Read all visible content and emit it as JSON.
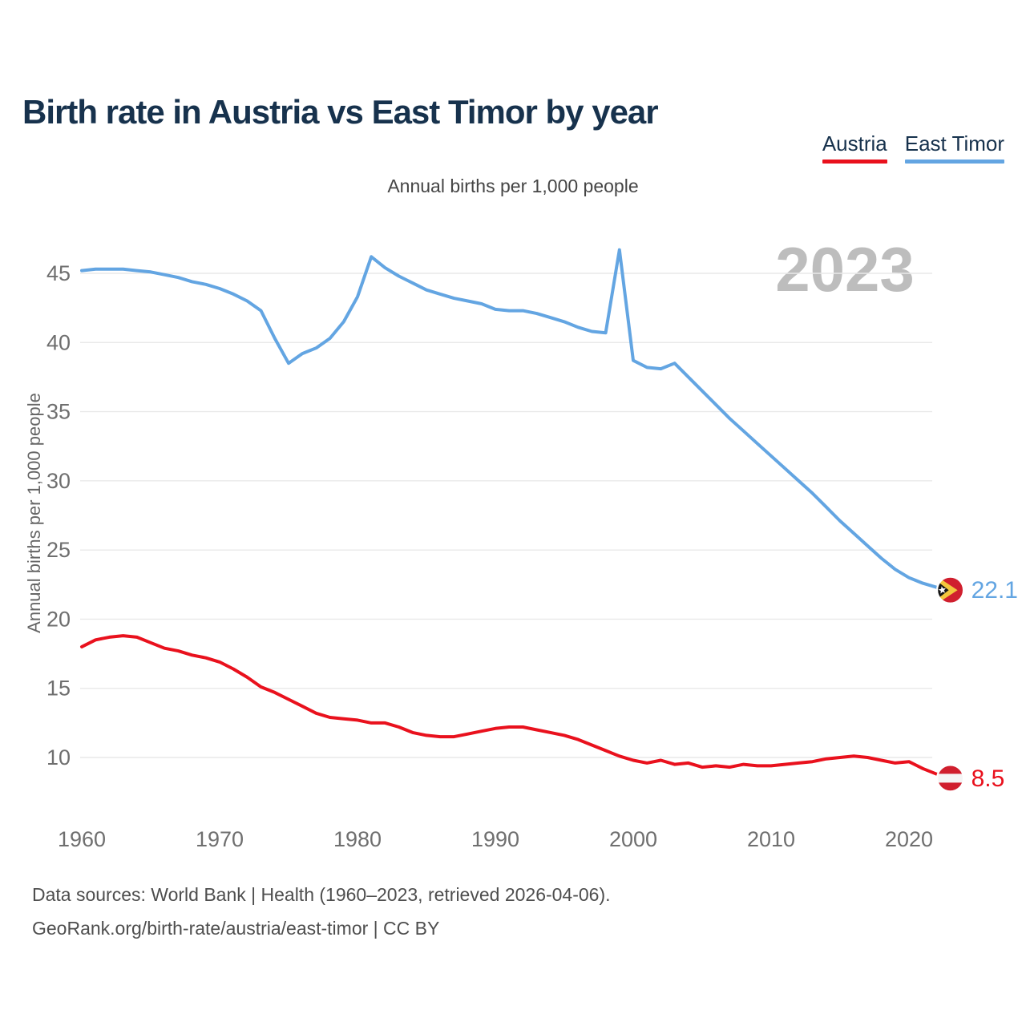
{
  "header": {
    "title": "Birth rate in Austria vs East Timor by year",
    "legend": [
      {
        "label": "Austria",
        "color": "#e9111d"
      },
      {
        "label": "East Timor",
        "color": "#63a5e2"
      }
    ]
  },
  "subtitle": "Annual births per 1,000 people",
  "y_axis_title": "Annual births per 1,000 people",
  "watermark": "2023",
  "footer": {
    "line1": "Data sources: World Bank | Health (1960–2023, retrieved 2026-04-06).",
    "line2": "GeoRank.org/birth-rate/austria/east-timor | CC BY"
  },
  "chart_data": {
    "type": "line",
    "title": "Birth rate in Austria vs East Timor by year",
    "ylabel": "Annual births per 1,000 people",
    "xlabel": "",
    "grid": true,
    "legend_position": "top-right",
    "ylim": [
      8,
      47.5
    ],
    "xlim": [
      1960,
      2023
    ],
    "yticks": [
      45,
      40,
      35,
      30,
      25,
      20,
      15,
      10
    ],
    "xticks": [
      1960,
      1970,
      1980,
      1990,
      2000,
      2010,
      2020
    ],
    "x": [
      1960,
      1961,
      1962,
      1963,
      1964,
      1965,
      1966,
      1967,
      1968,
      1969,
      1970,
      1971,
      1972,
      1973,
      1974,
      1975,
      1976,
      1977,
      1978,
      1979,
      1980,
      1981,
      1982,
      1983,
      1984,
      1985,
      1986,
      1987,
      1988,
      1989,
      1990,
      1991,
      1992,
      1993,
      1994,
      1995,
      1996,
      1997,
      1998,
      1999,
      2000,
      2001,
      2002,
      2003,
      2004,
      2005,
      2006,
      2007,
      2008,
      2009,
      2010,
      2011,
      2012,
      2013,
      2014,
      2015,
      2016,
      2017,
      2018,
      2019,
      2020,
      2021,
      2022,
      2023
    ],
    "series": [
      {
        "name": "Austria",
        "slug": "austria",
        "color": "#e9111d",
        "end_label": "8.5",
        "end_year": 2023,
        "flag": {
          "type": "austria",
          "red": "#d01f2e",
          "white": "#f5f5f5"
        },
        "values": [
          18.0,
          18.5,
          18.7,
          18.8,
          18.7,
          18.3,
          17.9,
          17.7,
          17.4,
          17.2,
          16.9,
          16.4,
          15.8,
          15.1,
          14.7,
          14.2,
          13.7,
          13.2,
          12.9,
          12.8,
          12.7,
          12.5,
          12.5,
          12.2,
          11.8,
          11.6,
          11.5,
          11.5,
          11.7,
          11.9,
          12.1,
          12.2,
          12.2,
          12.0,
          11.8,
          11.6,
          11.3,
          10.9,
          10.5,
          10.1,
          9.8,
          9.6,
          9.8,
          9.5,
          9.6,
          9.3,
          9.4,
          9.3,
          9.5,
          9.4,
          9.4,
          9.5,
          9.6,
          9.7,
          9.9,
          10.0,
          10.1,
          10.0,
          9.8,
          9.6,
          9.7,
          9.2,
          8.8,
          8.5
        ]
      },
      {
        "name": "East Timor",
        "slug": "east-timor",
        "color": "#63a5e2",
        "end_label": "22.1",
        "end_year": 2023,
        "flag": {
          "type": "east-timor",
          "red": "#d01f2e",
          "yellow": "#f3c63d",
          "black": "#141414",
          "white": "#ffffff"
        },
        "values": [
          45.2,
          45.3,
          45.3,
          45.3,
          45.2,
          45.1,
          44.9,
          44.7,
          44.4,
          44.2,
          43.9,
          43.5,
          43.0,
          42.3,
          40.3,
          38.5,
          39.2,
          39.6,
          40.3,
          41.5,
          43.3,
          46.2,
          45.4,
          44.8,
          44.3,
          43.8,
          43.5,
          43.2,
          43.0,
          42.8,
          42.4,
          42.3,
          42.3,
          42.1,
          41.8,
          41.5,
          41.1,
          40.8,
          40.7,
          46.7,
          38.7,
          38.2,
          38.1,
          38.5,
          37.5,
          36.5,
          35.5,
          34.5,
          33.6,
          32.7,
          31.8,
          30.9,
          30.0,
          29.1,
          28.1,
          27.1,
          26.2,
          25.3,
          24.4,
          23.6,
          23.0,
          22.6,
          22.3,
          22.1
        ]
      }
    ]
  }
}
